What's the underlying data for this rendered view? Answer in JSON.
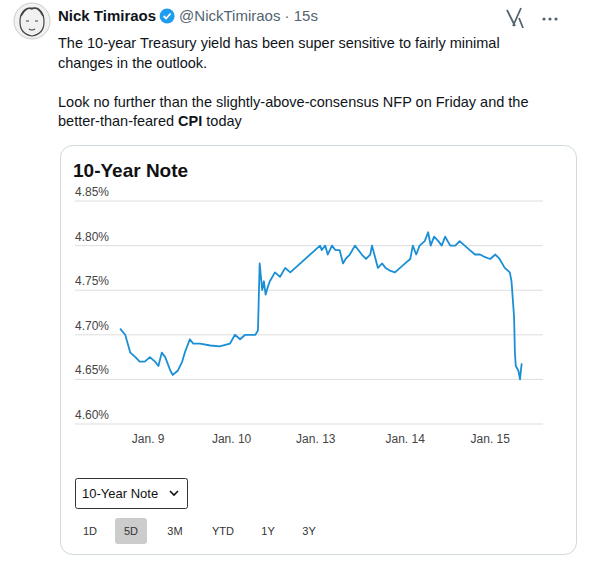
{
  "tweet": {
    "name": "Nick Timiraos",
    "handle": "@NickTimiraos · 15s",
    "lines": [
      [
        {
          "text": "The 10-year Treasury yield has been super sensitive to fairly minimal"
        }
      ],
      [
        {
          "text": "changes in the outlook."
        }
      ],
      [],
      [
        {
          "text": "Look no further than the slightly-above-consensus NFP on Friday and the"
        }
      ],
      [
        {
          "text": "better-than-feared "
        },
        {
          "text": "CPI",
          "bold": true
        },
        {
          "text": " today"
        }
      ]
    ]
  },
  "chart_data": {
    "type": "line",
    "title": "10-Year Note",
    "color": "#1a8fd6",
    "grid": true,
    "x": [
      0.53,
      0.59,
      0.62,
      0.65,
      0.71,
      0.76,
      0.82,
      0.88,
      0.94,
      0.98,
      1.02,
      1.06,
      1.12,
      1.15,
      1.21,
      1.26,
      1.29,
      1.33,
      1.35,
      1.39,
      1.47,
      1.59,
      1.7,
      1.82,
      1.88,
      1.94,
      2.0,
      2.06,
      2.12,
      2.15,
      2.17,
      2.2,
      2.22,
      2.24,
      2.27,
      2.29,
      2.35,
      2.41,
      2.47,
      2.53,
      2.88,
      2.9,
      2.94,
      2.97,
      3.02,
      3.06,
      3.11,
      3.15,
      3.18,
      3.23,
      3.29,
      3.33,
      3.37,
      3.42,
      3.47,
      3.49,
      3.56,
      3.61,
      3.65,
      3.7,
      3.76,
      3.82,
      3.88,
      3.94,
      3.97,
      4.01,
      4.05,
      4.11,
      4.15,
      4.18,
      4.22,
      4.27,
      4.31,
      4.35,
      4.41,
      4.47,
      4.52,
      4.58,
      4.64,
      4.7,
      4.76,
      4.82,
      4.88,
      4.94,
      4.99,
      5.05,
      5.11,
      5.13,
      5.16,
      5.17,
      5.18,
      5.21,
      5.22,
      5.23,
      5.24,
      5.25
    ],
    "values": [
      4.707,
      4.7,
      4.69,
      4.68,
      4.675,
      4.67,
      4.67,
      4.675,
      4.67,
      4.665,
      4.68,
      4.675,
      4.66,
      4.655,
      4.66,
      4.67,
      4.68,
      4.69,
      4.695,
      4.69,
      4.69,
      4.688,
      4.687,
      4.69,
      4.7,
      4.695,
      4.7,
      4.7,
      4.7,
      4.705,
      4.78,
      4.75,
      4.76,
      4.745,
      4.755,
      4.76,
      4.77,
      4.765,
      4.775,
      4.77,
      4.8,
      4.795,
      4.8,
      4.79,
      4.8,
      4.795,
      4.795,
      4.78,
      4.785,
      4.79,
      4.8,
      4.795,
      4.79,
      4.785,
      4.79,
      4.8,
      4.775,
      4.78,
      4.775,
      4.772,
      4.77,
      4.775,
      4.78,
      4.785,
      4.8,
      4.79,
      4.8,
      4.805,
      4.815,
      4.8,
      4.81,
      4.805,
      4.8,
      4.81,
      4.8,
      4.8,
      4.805,
      4.8,
      4.795,
      4.79,
      4.79,
      4.787,
      4.785,
      4.79,
      4.785,
      4.775,
      4.77,
      4.76,
      4.72,
      4.68,
      4.665,
      4.66,
      4.655,
      4.65,
      4.66,
      4.668
    ],
    "xlim": [
      0,
      5.5
    ],
    "xticks": [
      {
        "value": 0.86,
        "label": "Jan. 9"
      },
      {
        "value": 1.84,
        "label": "Jan. 10"
      },
      {
        "value": 2.83,
        "label": "Jan. 13"
      },
      {
        "value": 3.88,
        "label": "Jan. 14"
      },
      {
        "value": 4.88,
        "label": "Jan. 15"
      }
    ],
    "ylim": [
      4.6,
      4.85
    ],
    "yticks": [
      {
        "value": 4.6,
        "label": "4.60%"
      },
      {
        "value": 4.65,
        "label": "4.65%"
      },
      {
        "value": 4.7,
        "label": "4.70%"
      },
      {
        "value": 4.75,
        "label": "4.75%"
      },
      {
        "value": 4.8,
        "label": "4.80%"
      },
      {
        "value": 4.85,
        "label": "4.85%"
      }
    ]
  },
  "controls": {
    "dropdown": "10-Year Note",
    "ranges": [
      "1D",
      "5D",
      "3M",
      "YTD",
      "1Y",
      "3Y"
    ],
    "selected": "5D"
  }
}
